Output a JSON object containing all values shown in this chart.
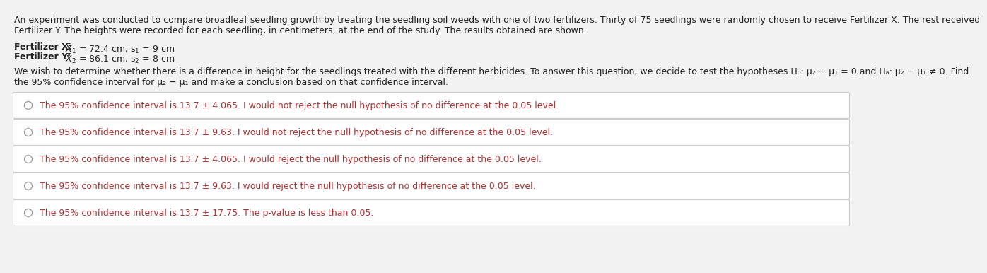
{
  "background_color": "#f2f2f2",
  "text_color": "#222222",
  "paragraph1_line1": "An experiment was conducted to compare broadleaf seedling growth by treating the seedling soil weeds with one of two fertilizers. Thirty of 75 seedlings were randomly chosen to receive Fertilizer X. The rest received",
  "paragraph1_line2": "Fertilizer Y. The heights were recorded for each seedling, in centimeters, at the end of the study. The results obtained are shown.",
  "fert_x_text": "Fertilizer X: $\\bar{X}_1$ = 72.4 cm, s$_1$ = 9 cm",
  "fert_y_text": "Fertilizer Y: $\\bar{X}_2$ = 86.1 cm, s$_2$ = 8 cm",
  "fert_bold_prefix_x": "Fertilizer X:",
  "fert_bold_prefix_y": "Fertilizer Y:",
  "paragraph3_line1": "We wish to determine whether there is a difference in height for the seedlings treated with the different herbicides. To answer this question, we decide to test the hypotheses H₀: μ₂ − μ₁ = 0 and Hₐ: μ₂ − μ₁ ≠ 0. Find",
  "paragraph3_line2": "the 95% confidence interval for μ₂ − μ₁ and make a conclusion based on that confidence interval.",
  "options": [
    "The 95% confidence interval is 13.7 ± 4.065. I would not reject the null hypothesis of no difference at the 0.05 level.",
    "The 95% confidence interval is 13.7 ± 9.63. I would not reject the null hypothesis of no difference at the 0.05 level.",
    "The 95% confidence interval is 13.7 ± 4.065. I would reject the null hypothesis of no difference at the 0.05 level.",
    "The 95% confidence interval is 13.7 ± 9.63. I would reject the null hypothesis of no difference at the 0.05 level.",
    "The 95% confidence interval is 13.7 ± 17.75. The p-value is less than 0.05."
  ],
  "option_box_facecolor": "#ffffff",
  "option_box_edgecolor": "#cccccc",
  "option_text_color": "#b03030",
  "circle_color": "#999999",
  "font_size": 9.0,
  "bold_font_size": 9.0
}
